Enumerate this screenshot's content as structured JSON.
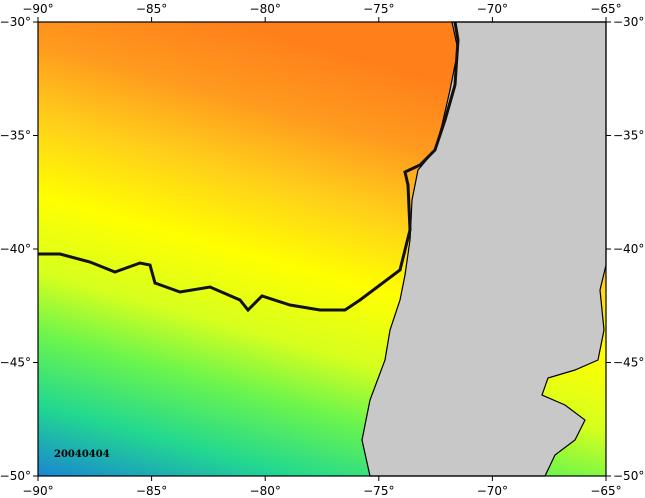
{
  "map": {
    "xlim": [
      -90,
      -65
    ],
    "ylim": [
      -50,
      -30
    ],
    "xticks": [
      {
        "value": -90,
        "label": "−90°"
      },
      {
        "value": -85,
        "label": "−85°"
      },
      {
        "value": -80,
        "label": "−80°"
      },
      {
        "value": -75,
        "label": "−75°"
      },
      {
        "value": -70,
        "label": "−70°"
      },
      {
        "value": -65,
        "label": "−65°"
      }
    ],
    "yticks": [
      {
        "value": -30,
        "label": "−30°"
      },
      {
        "value": -35,
        "label": "−35°"
      },
      {
        "value": -40,
        "label": "−40°"
      },
      {
        "value": -45,
        "label": "−45°"
      },
      {
        "value": -50,
        "label": "−50°"
      }
    ],
    "date_label": "20040404"
  }
}
